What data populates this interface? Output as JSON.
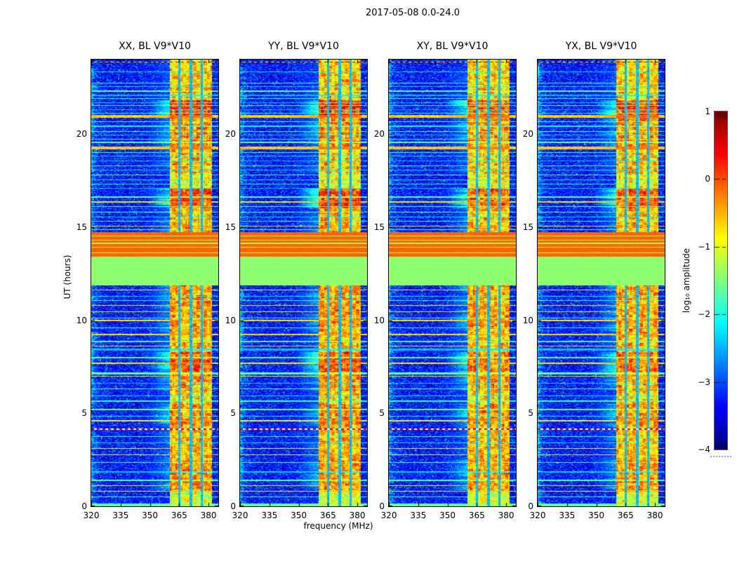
{
  "chart_data": {
    "type": "heatmap",
    "suptitle": "2017-05-08 0.0-24.0",
    "xlabel": "frequency (MHz)",
    "ylabel": "UT (hours)",
    "x_range": [
      320,
      385
    ],
    "x_ticks": [
      320,
      335,
      350,
      365,
      380
    ],
    "x_tick_labels": [
      "320",
      "335",
      "350",
      "365",
      "380"
    ],
    "y_range": [
      0,
      24
    ],
    "y_ticks": [
      0,
      5,
      10,
      15,
      20
    ],
    "y_tick_labels": [
      "0",
      "5",
      "10",
      "15",
      "20"
    ],
    "panels": [
      {
        "key": "XX",
        "title": "XX, BL V9*V10",
        "seed": 11,
        "band_gain": 1.0
      },
      {
        "key": "YY",
        "title": "YY, BL V9*V10",
        "seed": 37,
        "band_gain": 1.05
      },
      {
        "key": "XY",
        "title": "XY, BL V9*V10",
        "seed": 61,
        "band_gain": 0.82
      },
      {
        "key": "YX",
        "title": "YX, BL V9*V10",
        "seed": 89,
        "band_gain": 0.9
      }
    ],
    "colorbar": {
      "label": "log₁₀ amplitude",
      "colormap": "jet",
      "range": [
        -4,
        1
      ],
      "ticks": [
        1,
        0,
        -1,
        -2,
        -3,
        -4
      ],
      "tick_labels": [
        "1",
        "0",
        "−1",
        "−2",
        "−3",
        "−4"
      ]
    },
    "features": {
      "background": {
        "value": -3.3,
        "noise": 0.55
      },
      "band": {
        "f0": 360.3,
        "f1": 381.6,
        "value": -0.85,
        "gaps": [
          365.0,
          371.0,
          376.5
        ],
        "gap_halfwidth": 0.55
      },
      "blocks": [
        {
          "t0": 13.42,
          "t1": 14.75,
          "value": -0.12,
          "noise": 0.05,
          "lines": [
            {
              "t": 14.52,
              "v": -1.3
            },
            {
              "t": 14.3,
              "v": -1.3
            },
            {
              "t": 14.12,
              "v": -1.3
            },
            {
              "t": 13.92,
              "v": -1.3
            },
            {
              "t": 13.62,
              "v": -1.3
            }
          ]
        },
        {
          "t0": 11.88,
          "t1": 13.42,
          "value": -1.42,
          "noise": 0.02,
          "lines": []
        }
      ],
      "band_segments": [
        {
          "t0": 23.3,
          "t1": 24.0,
          "dv": 0.2
        },
        {
          "t0": 21.8,
          "t1": 23.3,
          "dv": 0.25
        },
        {
          "t0": 20.9,
          "t1": 21.8,
          "dv": 0.95
        },
        {
          "t0": 19.3,
          "t1": 20.9,
          "dv": 0.5
        },
        {
          "t0": 17.9,
          "t1": 19.3,
          "dv": 0.3
        },
        {
          "t0": 16.05,
          "t1": 17.1,
          "dv": 0.8
        },
        {
          "t0": 14.75,
          "t1": 16.05,
          "dv": 0.35
        },
        {
          "t0": 9.4,
          "t1": 11.88,
          "dv": 0.45
        },
        {
          "t0": 8.3,
          "t1": 9.4,
          "dv": 0.3
        },
        {
          "t0": 7.25,
          "t1": 8.3,
          "dv": 0.75
        },
        {
          "t0": 6.2,
          "t1": 7.25,
          "dv": 0.45
        },
        {
          "t0": 5.5,
          "t1": 6.2,
          "dv": 0.2
        },
        {
          "t0": 4.3,
          "t1": 5.5,
          "dv": 0.55
        },
        {
          "t0": 2.5,
          "t1": 4.3,
          "dv": 0.3
        },
        {
          "t0": 0.85,
          "t1": 2.5,
          "dv": 0.5
        },
        {
          "t0": 0.0,
          "t1": 0.85,
          "dv": -0.2
        }
      ],
      "h_lines": [
        {
          "t": 23.87,
          "v": 0.8,
          "w": 0.05,
          "dash": "band"
        },
        {
          "t": 23.34,
          "v": -2.1,
          "w": 0.04
        },
        {
          "t": 22.75,
          "v": -1.45,
          "w": 0.05
        },
        {
          "t": 22.55,
          "v": -2.2,
          "w": 0.04
        },
        {
          "t": 22.3,
          "v": -1.35,
          "w": 0.1
        },
        {
          "t": 22.08,
          "v": -2.3,
          "w": 0.04
        },
        {
          "t": 21.9,
          "v": -1.6,
          "w": 0.04
        },
        {
          "t": 21.68,
          "v": -2.25,
          "w": 0.04
        },
        {
          "t": 21.52,
          "v": -1.55,
          "w": 0.04
        },
        {
          "t": 21.3,
          "v": -2.4,
          "w": 0.04
        },
        {
          "t": 21.12,
          "v": -1.7,
          "w": 0.04
        },
        {
          "t": 20.95,
          "v": -0.18,
          "w": 0.17
        },
        {
          "t": 20.67,
          "v": -1.5,
          "w": 0.06
        },
        {
          "t": 20.42,
          "v": -1.85,
          "w": 0.04
        },
        {
          "t": 20.15,
          "v": -1.45,
          "w": 0.05
        },
        {
          "t": 19.95,
          "v": -2.25,
          "w": 0.04
        },
        {
          "t": 19.74,
          "v": -1.6,
          "w": 0.04
        },
        {
          "t": 19.55,
          "v": -1.35,
          "w": 0.05
        },
        {
          "t": 19.26,
          "v": -0.18,
          "w": 0.15
        },
        {
          "t": 19.0,
          "v": -1.5,
          "w": 0.05
        },
        {
          "t": 18.82,
          "v": -2.1,
          "w": 0.04
        },
        {
          "t": 18.55,
          "v": -2.3,
          "w": 0.04
        },
        {
          "t": 18.3,
          "v": -1.5,
          "w": 0.05
        },
        {
          "t": 18.08,
          "v": -2.2,
          "w": 0.04
        },
        {
          "t": 17.8,
          "v": -1.4,
          "w": 0.05
        },
        {
          "t": 17.55,
          "v": -2.05,
          "w": 0.04
        },
        {
          "t": 17.3,
          "v": -1.6,
          "w": 0.04
        },
        {
          "t": 17.1,
          "v": -2.3,
          "w": 0.04
        },
        {
          "t": 16.62,
          "v": -1.45,
          "w": 0.05
        },
        {
          "t": 16.35,
          "v": -0.3,
          "w": 0.07
        },
        {
          "t": 16.1,
          "v": -1.55,
          "w": 0.04
        },
        {
          "t": 15.8,
          "v": -1.35,
          "w": 0.06
        },
        {
          "t": 15.55,
          "v": -2.15,
          "w": 0.04
        },
        {
          "t": 15.3,
          "v": -1.6,
          "w": 0.04
        },
        {
          "t": 15.05,
          "v": -0.3,
          "w": 0.06
        },
        {
          "t": 14.88,
          "v": -1.5,
          "w": 0.04
        },
        {
          "t": 11.62,
          "v": -0.32,
          "w": 0.06
        },
        {
          "t": 11.3,
          "v": -2.05,
          "w": 0.04
        },
        {
          "t": 11.05,
          "v": -1.6,
          "w": 0.04
        },
        {
          "t": 10.8,
          "v": -0.35,
          "w": 0.06
        },
        {
          "t": 10.45,
          "v": -0.35,
          "w": 0.06
        },
        {
          "t": 10.12,
          "v": -1.55,
          "w": 0.04
        },
        {
          "t": 9.98,
          "v": -0.35,
          "w": 0.05
        },
        {
          "t": 9.6,
          "v": -1.6,
          "w": 0.04
        },
        {
          "t": 9.22,
          "v": -0.35,
          "w": 0.06
        },
        {
          "t": 8.85,
          "v": -1.5,
          "w": 0.05
        },
        {
          "t": 8.6,
          "v": -0.35,
          "w": 0.05
        },
        {
          "t": 8.42,
          "v": -2.3,
          "w": 0.08
        },
        {
          "t": 8.0,
          "v": -1.4,
          "w": 0.08
        },
        {
          "t": 7.68,
          "v": -0.35,
          "w": 0.05
        },
        {
          "t": 7.15,
          "v": -1.32,
          "w": 0.1
        },
        {
          "t": 6.98,
          "v": -0.4,
          "w": 0.05
        },
        {
          "t": 6.6,
          "v": -2.2,
          "w": 0.04
        },
        {
          "t": 6.3,
          "v": -1.5,
          "w": 0.05
        },
        {
          "t": 5.95,
          "v": -2.05,
          "w": 0.04
        },
        {
          "t": 5.65,
          "v": -1.6,
          "w": 0.07
        },
        {
          "t": 5.2,
          "v": -1.32,
          "w": 0.1
        },
        {
          "t": 4.85,
          "v": -1.85,
          "w": 0.04
        },
        {
          "t": 4.6,
          "v": -0.4,
          "w": 0.05
        },
        {
          "t": 4.15,
          "v": 0.55,
          "w": 0.05,
          "dash": "white"
        },
        {
          "t": 3.75,
          "v": -1.5,
          "w": 0.06
        },
        {
          "t": 3.4,
          "v": -2.05,
          "w": 0.04
        },
        {
          "t": 3.1,
          "v": -0.4,
          "w": 0.05
        },
        {
          "t": 2.78,
          "v": -0.4,
          "w": 0.05
        },
        {
          "t": 2.35,
          "v": -1.5,
          "w": 0.06
        },
        {
          "t": 1.85,
          "v": -2.2,
          "w": 0.05
        },
        {
          "t": 1.4,
          "v": -1.4,
          "w": 0.07
        },
        {
          "t": 1.12,
          "v": -0.42,
          "w": 0.05
        },
        {
          "t": 0.8,
          "v": -0.42,
          "w": 0.05
        },
        {
          "t": 0.52,
          "v": -1.5,
          "w": 0.05
        },
        {
          "t": 0.08,
          "v": -1.35,
          "w": 0.14
        }
      ]
    }
  }
}
